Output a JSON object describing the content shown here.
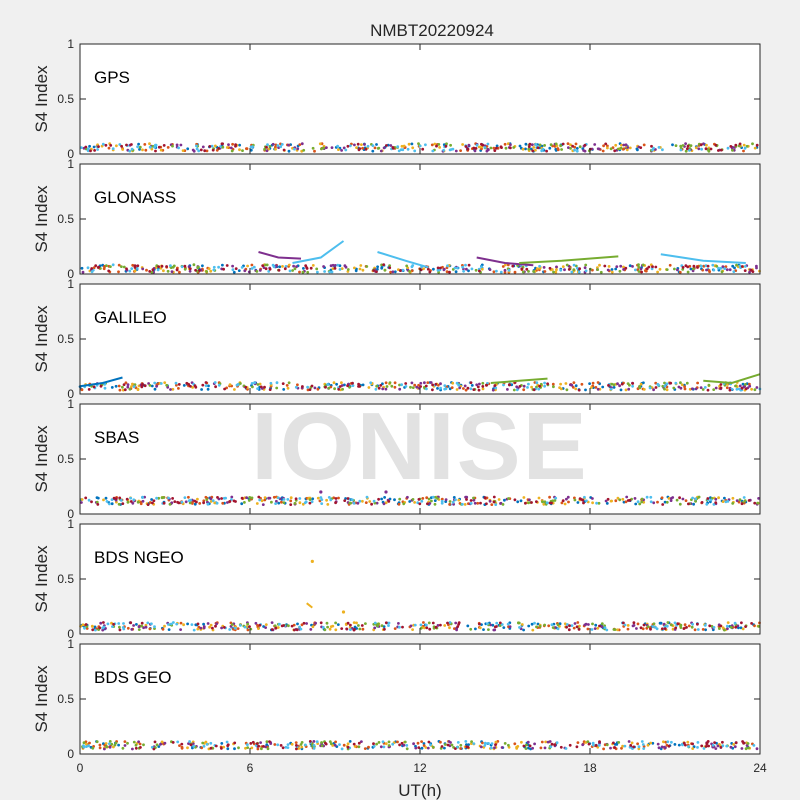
{
  "figure_title": "NMBT20220924",
  "watermark": "IONISE",
  "chart_data": {
    "type": "scatter",
    "title": "NMBT20220924",
    "xlabel": "UT(h)",
    "ylabel": "S4 Index",
    "xlim": [
      0,
      24
    ],
    "ylim": [
      0,
      1
    ],
    "x_ticks": [
      "0",
      "6",
      "12",
      "18",
      "24"
    ],
    "y_ticks": [
      "0",
      "0.5",
      "1"
    ],
    "grid": false,
    "colors": [
      "#0072bd",
      "#d95319",
      "#edb120",
      "#7e2f8e",
      "#77ac30",
      "#4dbeee",
      "#a2142f"
    ],
    "panels": [
      {
        "name": "GPS",
        "baseline": 0.06,
        "events": []
      },
      {
        "name": "GLONASS",
        "baseline": 0.05,
        "events": [
          {
            "x": [
              6.3,
              7.0,
              7.8
            ],
            "y": [
              0.2,
              0.15,
              0.14
            ],
            "series": 3
          },
          {
            "x": [
              7.5,
              8.5,
              9.3
            ],
            "y": [
              0.1,
              0.15,
              0.3
            ],
            "series": 5
          },
          {
            "x": [
              10.5,
              11.5,
              12.3
            ],
            "y": [
              0.2,
              0.12,
              0.06
            ],
            "series": 5
          },
          {
            "x": [
              14.0,
              15.0,
              16.0
            ],
            "y": [
              0.15,
              0.1,
              0.08
            ],
            "series": 3
          },
          {
            "x": [
              15.5,
              17.0,
              19.0
            ],
            "y": [
              0.1,
              0.12,
              0.16
            ],
            "series": 4
          },
          {
            "x": [
              20.5,
              22.0,
              23.5
            ],
            "y": [
              0.18,
              0.12,
              0.1
            ],
            "series": 5
          }
        ]
      },
      {
        "name": "GALILEO",
        "baseline": 0.07,
        "events": [
          {
            "x": [
              0.0,
              0.8,
              1.5
            ],
            "y": [
              0.07,
              0.1,
              0.15
            ],
            "series": 0
          },
          {
            "x": [
              14.5,
              15.5,
              16.5
            ],
            "y": [
              0.1,
              0.12,
              0.14
            ],
            "series": 4
          },
          {
            "x": [
              22.0,
              23.0,
              24.0
            ],
            "y": [
              0.12,
              0.1,
              0.18
            ],
            "series": 4
          }
        ]
      },
      {
        "name": "SBAS",
        "baseline": 0.12,
        "events": [
          {
            "x": [
              8.5
            ],
            "y": [
              0.2
            ],
            "series": 3
          },
          {
            "x": [
              10.8
            ],
            "y": [
              0.2
            ],
            "series": 3
          }
        ]
      },
      {
        "name": "BDS NGEO",
        "baseline": 0.07,
        "events": [
          {
            "x": [
              8.2
            ],
            "y": [
              0.66
            ],
            "series": 2
          },
          {
            "x": [
              8.0,
              8.2
            ],
            "y": [
              0.28,
              0.24
            ],
            "series": 2
          },
          {
            "x": [
              9.3
            ],
            "y": [
              0.2
            ],
            "series": 2
          }
        ]
      },
      {
        "name": "BDS GEO",
        "baseline": 0.08,
        "events": []
      }
    ]
  }
}
